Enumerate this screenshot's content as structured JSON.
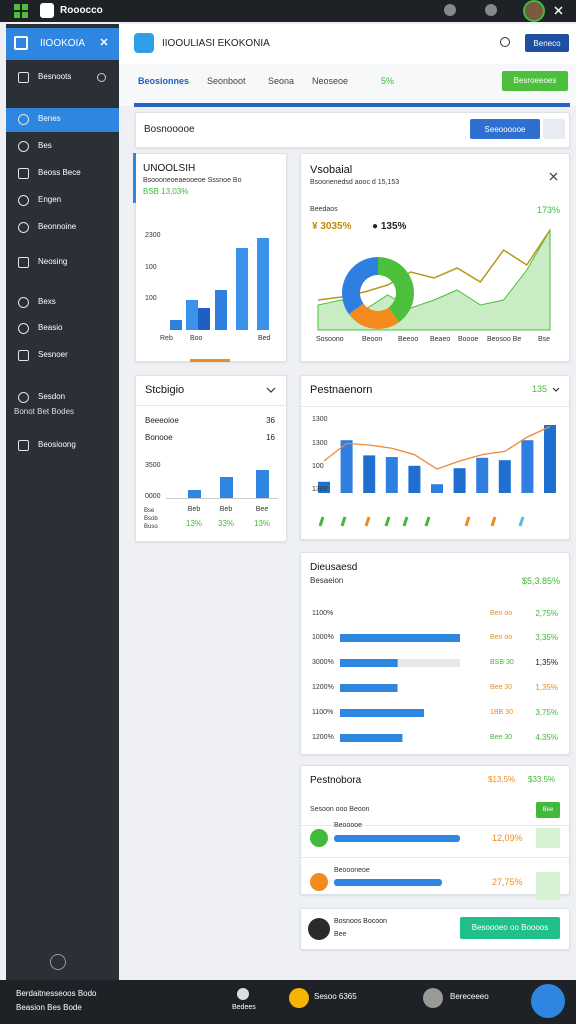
{
  "topbar": {
    "app": "Rooocco"
  },
  "sidebar": {
    "title": "IIOOKOIA",
    "items": [
      "Besnoots",
      "Benes",
      "Bes",
      "Beoss Bece",
      "Engen",
      "Beonnoine",
      "Neosing",
      "Bexs",
      "Beasio",
      "Sesnoer",
      "Sesdon",
      "Bonot Bet Bodes",
      "Beosioong"
    ],
    "footer": [
      "Berdaitnesseoos Bodo",
      "Beasion Bes Bode"
    ]
  },
  "bottombar": {
    "items": [
      "Bedees",
      "Sesoo 6365",
      "Bereceeeo"
    ]
  },
  "header": {
    "title": "IIOOULIASI EKOKONIA",
    "button": "Beneco"
  },
  "tabs": {
    "items": [
      "Beosionnes",
      "Seonboot",
      "Seona",
      "Neoseoe",
      "5%"
    ],
    "button": "Besroeeoes"
  },
  "filter": {
    "label": "Bosnooooe",
    "button": "Seeoooooe"
  },
  "overview": {
    "title": "UNOOLSIH",
    "subtitle": "Bsoooneoeaeooeoe Sssnoe Bo",
    "stat": "BSB 13,03%",
    "axis_labels": [
      "2300",
      "100",
      "100"
    ],
    "categories": [
      "Reb",
      "Boo",
      "Bed"
    ],
    "ylim": [
      0,
      100
    ],
    "values": [
      10,
      30,
      22,
      40,
      82,
      92
    ],
    "colors": [
      "#2f7fe0",
      "#3b92ea",
      "#1f5fc4",
      "#2f7fe0",
      "#3b92ea",
      "#3b92ea"
    ]
  },
  "visual": {
    "title": "Vsobaial",
    "subtitle": "Bsoonenedsd aooc d 15,153",
    "label": "Beedaos",
    "stat": "173%",
    "legend": [
      "¥ 3035%",
      "● 135%"
    ],
    "donut": [
      40,
      25,
      35
    ],
    "donut_colors": [
      "#4cbf3d",
      "#f28a1d",
      "#2f7fe0"
    ],
    "ylim": [
      0,
      100
    ],
    "area": [
      25,
      30,
      20,
      35,
      22,
      30,
      40,
      25,
      30,
      60,
      100
    ],
    "line": [
      30,
      33,
      38,
      45,
      58,
      52,
      62,
      48,
      80,
      65,
      100
    ],
    "categories": [
      "Sosoono",
      "Beoon",
      "Beeoo",
      "Beaeo",
      "Boooe",
      "Beosoo Be",
      "Bse"
    ]
  },
  "status": {
    "title": "Stcbigio",
    "rows": [
      [
        "Beeeoioe",
        "36"
      ],
      [
        "Bonooe",
        "16"
      ]
    ],
    "axis_labels": [
      "3500",
      "0000"
    ],
    "ylim": [
      0,
      100
    ],
    "values": [
      16,
      42,
      56
    ],
    "left_labels": [
      "Bse",
      "Bsob",
      "Boso"
    ],
    "columns": [
      [
        "Beb",
        "13%"
      ],
      [
        "Beb",
        "33%"
      ],
      [
        "Bee",
        "13%"
      ]
    ]
  },
  "performance": {
    "title": "Pestnaenorn",
    "stat": "135",
    "axis_labels": [
      "1300",
      "1300",
      "100",
      "1300"
    ],
    "ylim": [
      0,
      100
    ],
    "bars": [
      14,
      66,
      47,
      45,
      34,
      11,
      31,
      44,
      41,
      66,
      85
    ],
    "line": [
      40,
      62,
      60,
      56,
      48,
      30,
      40,
      48,
      52,
      70,
      83
    ]
  },
  "distribution": {
    "title": "Dieusaesd",
    "subtitle": "Besaeion",
    "stat": "$5,3.85%",
    "xlim": [
      0,
      100
    ],
    "rows": [
      {
        "label": "1100%",
        "tag": "Beo oo",
        "pct": "2,75%",
        "value": null
      },
      {
        "label": "1000%",
        "tag": "Beo oo",
        "pct": "3,35%",
        "value": 100
      },
      {
        "label": "3000%",
        "tag": "BSB 30",
        "pct": "1,35%",
        "value": 48
      },
      {
        "label": "1200%",
        "tag": "Bee 30",
        "pct": "1,35%",
        "value": 48
      },
      {
        "label": "1100%",
        "tag": "1BB 30",
        "pct": "3,75%",
        "value": 70
      },
      {
        "label": "1200%",
        "tag": "Bee 30",
        "pct": "4,35%",
        "value": 52
      }
    ]
  },
  "progress": {
    "title": "Pestnobora",
    "stats": [
      "$13,5%",
      "$33.5%"
    ],
    "subtitle": "Sesoon ooo Beoon",
    "button": "Bee",
    "xlim": [
      0,
      100
    ],
    "rows": [
      {
        "name": "Beooooe",
        "pct": "12,09%",
        "value": 84
      },
      {
        "name": "Beoooneoe",
        "pct": "27,75%",
        "value": 72
      }
    ]
  },
  "profile": {
    "name": "Bosnoos Bocoon",
    "sub": "Bee",
    "button": "Besoooeo oo Boooos"
  }
}
